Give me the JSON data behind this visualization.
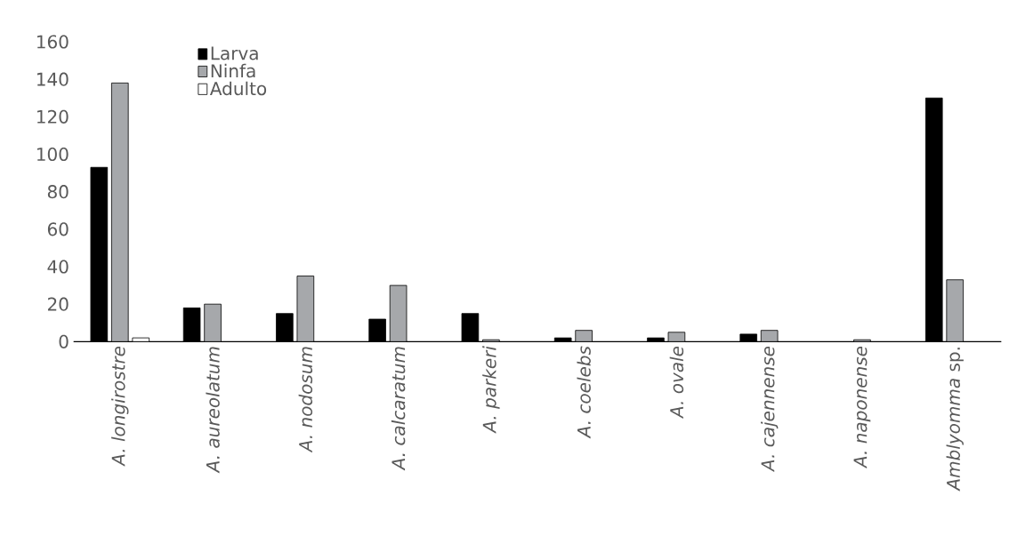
{
  "chart_data": {
    "type": "bar",
    "categories": [
      "*A. longirostre*",
      "*A. aureolatum*",
      "*A. nodosum*",
      "*A. calcaratum*",
      "*A. parkeri*",
      "*A. coelebs*",
      "*A. ovale*",
      "*A. cajennense*",
      "*A. naponense*",
      "*Amblyomma* sp."
    ],
    "series": [
      {
        "name": "Larva",
        "color": "#000000",
        "values": [
          93,
          18,
          15,
          12,
          15,
          2,
          2,
          4,
          null,
          130
        ]
      },
      {
        "name": "Ninfa",
        "color": "#a6a8ab",
        "values": [
          138,
          20,
          35,
          30,
          1,
          6,
          5,
          6,
          1,
          33
        ]
      },
      {
        "name": "Adulto",
        "color": "#ffffff",
        "values": [
          2,
          null,
          null,
          null,
          null,
          null,
          null,
          null,
          null,
          null
        ]
      }
    ],
    "ylim": [
      0,
      160
    ],
    "yticks": [
      0,
      20,
      40,
      60,
      80,
      100,
      120,
      140,
      160
    ],
    "legend": "top left"
  }
}
